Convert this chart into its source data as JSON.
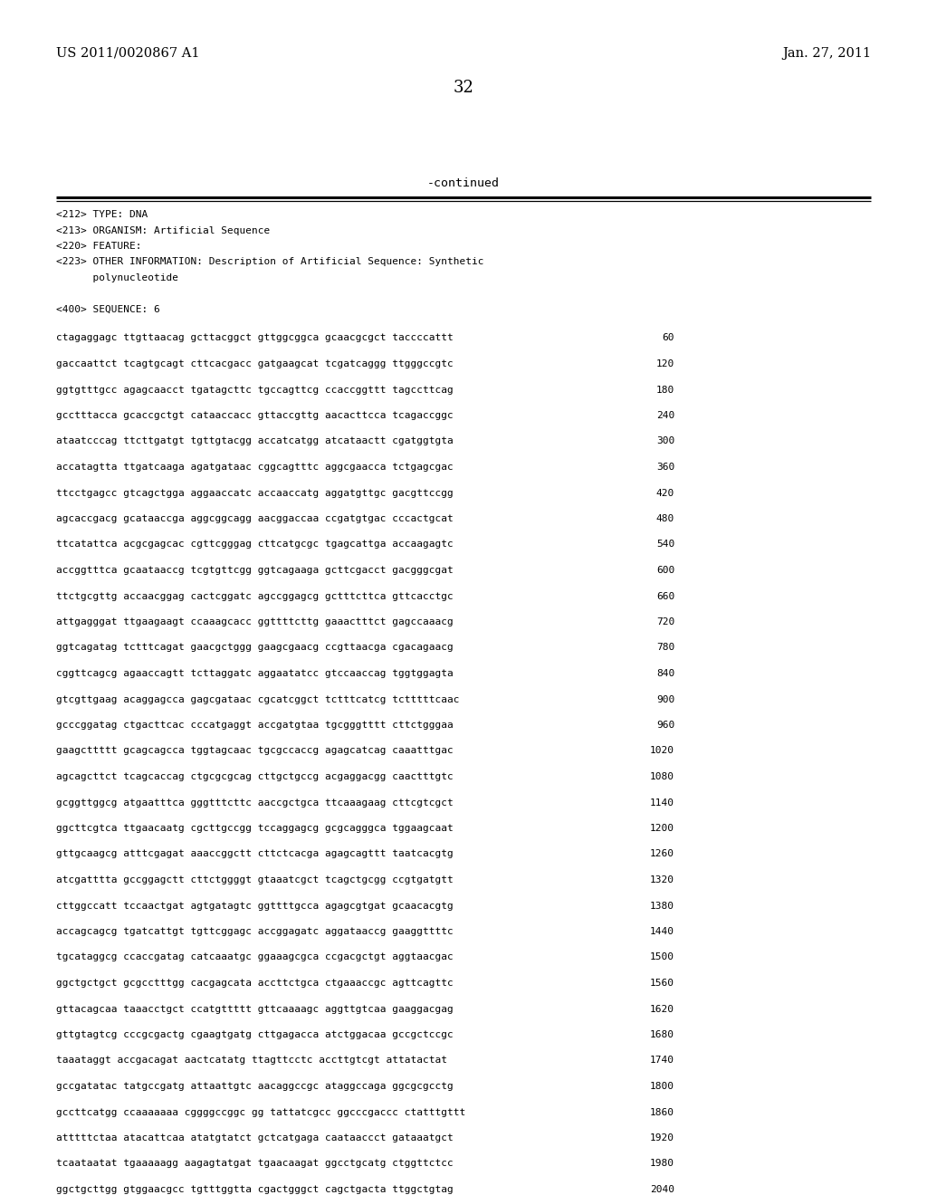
{
  "header_left": "US 2011/0020867 A1",
  "header_right": "Jan. 27, 2011",
  "page_number": "32",
  "continued_text": "-continued",
  "metadata_lines": [
    "<212> TYPE: DNA",
    "<213> ORGANISM: Artificial Sequence",
    "<220> FEATURE:",
    "<223> OTHER INFORMATION: Description of Artificial Sequence: Synthetic",
    "      polynucleotide",
    "",
    "<400> SEQUENCE: 6"
  ],
  "sequence_lines": [
    [
      "ctagaggagc ttgttaacag gcttacggct gttggcggca gcaacgcgct taccccattt",
      "60"
    ],
    [
      "gaccaattct tcagtgcagt cttcacgacc gatgaagcat tcgatcaggg ttgggccgtc",
      "120"
    ],
    [
      "ggtgtttgcc agagcaacct tgatagcttc tgccagttcg ccaccggttt tagccttcag",
      "180"
    ],
    [
      "gcctttacca gcaccgctgt cataaccacc gttaccgttg aacacttcca tcagaccggc",
      "240"
    ],
    [
      "ataatcccag ttcttgatgt tgttgtacgg accatcatgg atcataactt cgatggtgta",
      "300"
    ],
    [
      "accatagtta ttgatcaaga agatgataac cggcagtttc aggcgaacca tctgagcgac",
      "360"
    ],
    [
      "ttcctgagcc gtcagctgga aggaaccatc accaaccatg aggatgttgc gacgttccgg",
      "420"
    ],
    [
      "agcaccgacg gcataaccga aggcggcagg aacggaccaa ccgatgtgac cccactgcat",
      "480"
    ],
    [
      "ttcatattca acgcgagcac cgttcgggag cttcatgcgc tgagcattga accaagagtc",
      "540"
    ],
    [
      "accggtttca gcaataaccg tcgtgttcgg ggtcagaaga gcttcgacct gacgggcgat",
      "600"
    ],
    [
      "ttctgcgttg accaacggag cactcggatc agccggagcg gctttcttca gttcacctgc",
      "660"
    ],
    [
      "attgagggat ttgaagaagt ccaaagcacc ggttttcttg gaaactttct gagccaaacg",
      "720"
    ],
    [
      "ggtcagatag tctttcagat gaacgctggg gaagcgaacg ccgttaacga cgacagaacg",
      "780"
    ],
    [
      "cggttcagcg agaaccagtt tcttaggatc aggaatatcc gtccaaccag tggtggagta",
      "840"
    ],
    [
      "gtcgttgaag acaggagcca gagcgataac cgcatcggct tctttcatcg tctttttcaac",
      "900"
    ],
    [
      "gcccggatag ctgacttcac cccatgaggt accgatgtaa tgcgggtttt cttctgggaa",
      "960"
    ],
    [
      "gaagcttttt gcagcagcca tggtagcaac tgcgccaccg agagcatcag caaatttgac",
      "1020"
    ],
    [
      "agcagcttct tcagcaccag ctgcgcgcag cttgctgccg acgaggacgg caactttgtc",
      "1080"
    ],
    [
      "gcggttggcg atgaatttca gggtttcttc aaccgctgca ttcaaagaag cttcgtcgct",
      "1140"
    ],
    [
      "ggcttcgtca ttgaacaatg cgcttgccgg tccaggagcg gcgcagggca tggaagcaat",
      "1200"
    ],
    [
      "gttgcaagcg atttcgagat aaaccggctt cttctcacga agagcagttt taatcacgtg",
      "1260"
    ],
    [
      "atcgatttta gccggagctt cttctggggt gtaaatcgct tcagctgcgg ccgtgatgtt",
      "1320"
    ],
    [
      "cttggccatt tccaactgat agtgatagtc ggttttgcca agagcgtgat gcaacacgtg",
      "1380"
    ],
    [
      "accagcagcg tgatcattgt tgttcggagc accggagatc aggataaccg gaaggttttc",
      "1440"
    ],
    [
      "tgcataggcg ccaccgatag catcaaatgc ggaaagcgca ccgacgctgt aggtaacgac",
      "1500"
    ],
    [
      "ggctgctgct gcgcctttgg cacgagcata accttctgca ctgaaaccgc agttcagttc",
      "1560"
    ],
    [
      "gttacagcaa taaacctgct ccatgttttt gttcaaaagc aggttgtcaa gaaggacgag",
      "1620"
    ],
    [
      "gttgtagtcg cccgcgactg cgaagtgatg cttgagacca atctggacaa gccgctccgc",
      "1680"
    ],
    [
      "taaataggt accgacagat aactcatatg ttagttcctc accttgtcgt attatactat",
      "1740"
    ],
    [
      "gccgatatac tatgccgatg attaattgtc aacaggccgc ataggccaga ggcgcgcctg",
      "1800"
    ],
    [
      "gccttcatgg ccaaaaaaa cggggccggc gg tattatcgcc ggcccgaccc ctatttgttt",
      "1860"
    ],
    [
      "atttttctaa atacattcaa atatgtatct gctcatgaga caataaccct gataaatgct",
      "1920"
    ],
    [
      "tcaataatat tgaaaaagg aagagtatgat tgaacaagat ggcctgcatg ctggttctcc",
      "1980"
    ],
    [
      "ggctgcttgg gtggaacgcc tgtttggtta cgactgggct cagctgacta ttggctgtag",
      "2040"
    ]
  ],
  "background_color": "#ffffff",
  "text_color": "#000000"
}
